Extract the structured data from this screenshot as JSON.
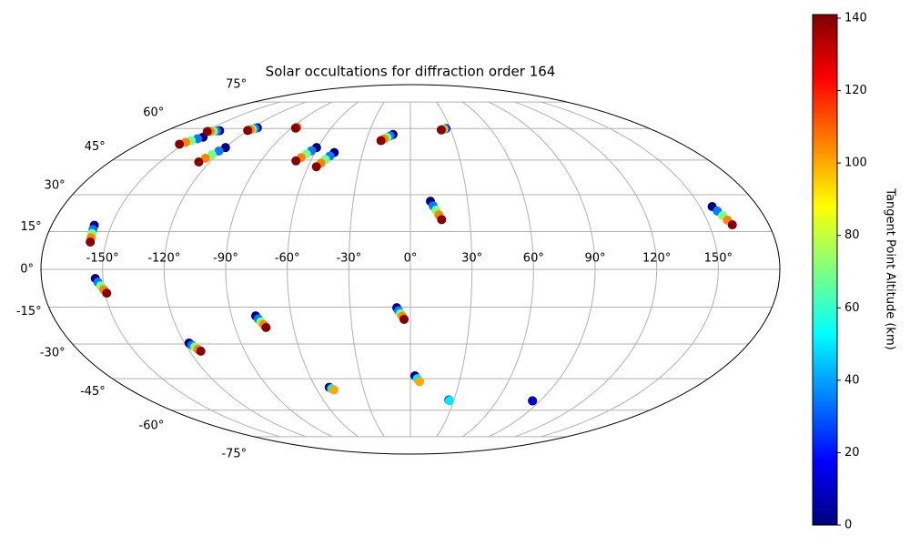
{
  "chart_data": {
    "type": "scatter",
    "projection": "mollweide",
    "colormap": "jet",
    "grid": true,
    "title": "Solar occultations for diffraction order 164",
    "colorbar_label": "Tangent Point Altitude (km)",
    "clim": [
      0,
      141
    ],
    "cticks": [
      0,
      20,
      40,
      60,
      80,
      100,
      120,
      140
    ],
    "xlim": [
      -180,
      180
    ],
    "ylim": [
      -90,
      90
    ],
    "xticks": [
      {
        "value": -150,
        "label": "-150°"
      },
      {
        "value": -120,
        "label": "-120°"
      },
      {
        "value": -90,
        "label": "-90°"
      },
      {
        "value": -60,
        "label": "-60°"
      },
      {
        "value": -30,
        "label": "-30°"
      },
      {
        "value": 0,
        "label": "0°"
      },
      {
        "value": 30,
        "label": "30°"
      },
      {
        "value": 60,
        "label": "60°"
      },
      {
        "value": 90,
        "label": "90°"
      },
      {
        "value": 120,
        "label": "120°"
      },
      {
        "value": 150,
        "label": "150°"
      }
    ],
    "yticks": [
      {
        "value": -75,
        "label": "-75°"
      },
      {
        "value": -60,
        "label": "-60°"
      },
      {
        "value": -45,
        "label": "-45°"
      },
      {
        "value": -30,
        "label": "-30°"
      },
      {
        "value": -15,
        "label": "-15°"
      },
      {
        "value": 0,
        "label": "0°"
      },
      {
        "value": 15,
        "label": "15°"
      },
      {
        "value": 30,
        "label": "30°"
      },
      {
        "value": 45,
        "label": "45°"
      },
      {
        "value": 60,
        "label": "60°"
      },
      {
        "value": 75,
        "label": "75°"
      }
    ],
    "x": [
      -158.6,
      -158.4,
      -158.2,
      -157.9,
      -157.7,
      -153.7,
      -152.6,
      -151.5,
      -150.3,
      -149.2,
      -144.6,
      -146.7,
      -148.8,
      -150.9,
      -153,
      -140.7,
      -142.7,
      -144.7,
      -146.7,
      -148.7,
      -119.8,
      -121.5,
      -123.3,
      -125.0,
      -126.7,
      -116.1,
      -117.1,
      -118.2,
      -119.2,
      -120.2,
      -86.4,
      -86.8,
      -60.8,
      -62.8,
      -64.9,
      -66.9,
      -68.9,
      -47.9,
      -49.7,
      -51.5,
      -53.3,
      -55.1,
      -12.4,
      -14.3,
      -16.2,
      -18.1,
      -20.0,
      26.7,
      25.8,
      24.8,
      23.9,
      22.9,
      10.5,
      11.8,
      13.2,
      14.5,
      15.8,
      156.3,
      157.6,
      159.0,
      160.3,
      161.6,
      -6.8,
      -5.9,
      -5.0,
      -4.1,
      -3.2,
      -77.9,
      -76.9,
      -76.0,
      -75.0,
      -74.1,
      -117.6,
      -116.7,
      -115.8,
      -114.8,
      -113.9,
      -51.4,
      -50.3,
      -49.2,
      2.7,
      4.2,
      5.6,
      26.5,
      27.0,
      84.6,
      84.8
    ],
    "y": [
      17.5,
      15.8,
      14.2,
      12.5,
      10.8,
      -3.6,
      -5.1,
      -6.5,
      -8.0,
      -9.4,
      55.7,
      54.9,
      54.0,
      53.2,
      52.3,
      58.9,
      58.8,
      58.7,
      58.6,
      58.5,
      50.7,
      49.1,
      47.4,
      45.8,
      44.1,
      60.4,
      60.1,
      59.7,
      59.4,
      59.0,
      60.6,
      60.2,
      50.7,
      49.2,
      47.7,
      46.1,
      44.6,
      48.4,
      46.8,
      45.2,
      43.6,
      42.0,
      57.0,
      56.3,
      55.5,
      54.8,
      54.0,
      60.0,
      59.8,
      59.7,
      59.5,
      59.3,
      27.3,
      25.4,
      23.6,
      21.7,
      19.8,
      25.1,
      23.3,
      21.4,
      19.6,
      17.7,
      -15.2,
      -16.4,
      -17.6,
      -18.7,
      -19.9,
      -18.5,
      -19.7,
      -20.9,
      -22.0,
      -23.2,
      -29.6,
      -30.5,
      -31.3,
      -32.2,
      -33.0,
      -48.9,
      -49.5,
      -50.1,
      -43.7,
      -45.0,
      -46.3,
      -54.9,
      -55.2,
      -55.3,
      -55.4
    ],
    "c": [
      0,
      35,
      70,
      105,
      140,
      0,
      35,
      70,
      105,
      140,
      0,
      35,
      70,
      105,
      140,
      0,
      35,
      70,
      105,
      140,
      0,
      35,
      70,
      105,
      140,
      0,
      35,
      70,
      105,
      140,
      110,
      140,
      0,
      35,
      70,
      105,
      140,
      0,
      35,
      70,
      105,
      140,
      0,
      35,
      70,
      105,
      140,
      0,
      35,
      70,
      105,
      140,
      0,
      35,
      70,
      105,
      140,
      0,
      35,
      70,
      105,
      140,
      0,
      35,
      70,
      105,
      140,
      0,
      35,
      70,
      105,
      140,
      0,
      35,
      70,
      105,
      140,
      0,
      50,
      100,
      0,
      50,
      100,
      0,
      50,
      0,
      10
    ]
  }
}
